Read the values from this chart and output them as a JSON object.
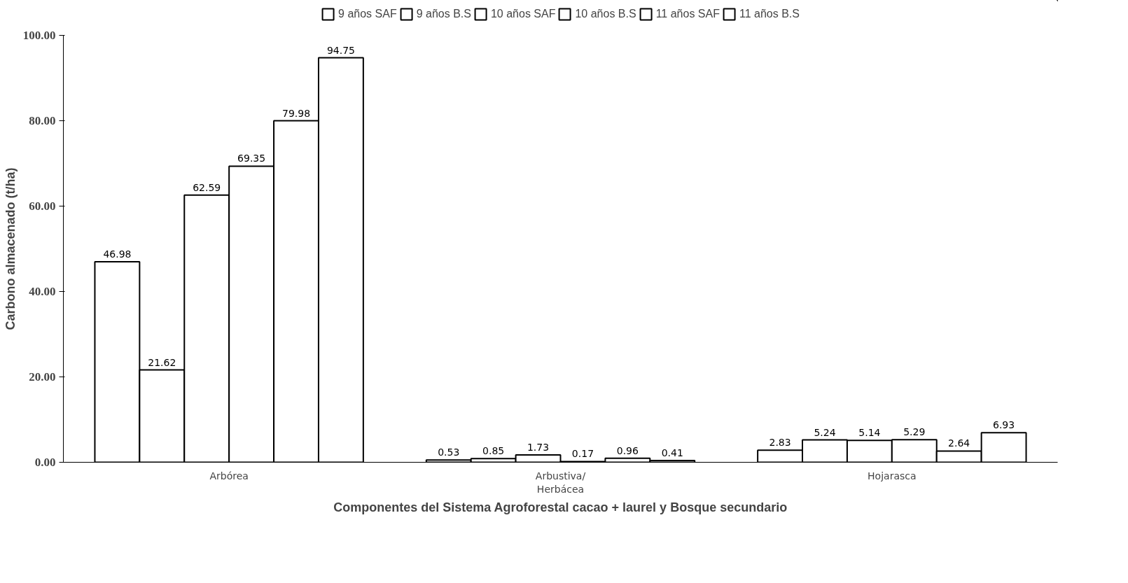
{
  "chart_data": {
    "type": "bar",
    "xlabel": "Componentes del Sistema Agroforestal cacao + laurel y Bosque secundario",
    "ylabel": "Carbono almacenado (t/ha)",
    "categories": [
      "Arbórea",
      "Arbustiva/\nHerbácea",
      "Hojarasca"
    ],
    "series": [
      {
        "name": "9 años SAF",
        "color": "#ffffff",
        "values": [
          46.98,
          0.53,
          2.83
        ]
      },
      {
        "name": "9 años B.S",
        "color": "#ffffff",
        "values": [
          21.62,
          0.85,
          5.24
        ]
      },
      {
        "name": "10 años SAF",
        "color": "#ffffff",
        "values": [
          62.59,
          1.73,
          5.14
        ]
      },
      {
        "name": "10 años B.S",
        "color": "#ffffff",
        "values": [
          69.35,
          0.17,
          5.29
        ]
      },
      {
        "name": "11 años SAF",
        "color": "#ffffff",
        "values": [
          79.98,
          0.96,
          2.64
        ]
      },
      {
        "name": "11 años B.S",
        "color": "#ffffff",
        "values": [
          94.75,
          0.41,
          6.93
        ]
      }
    ],
    "ylim": [
      0,
      100
    ],
    "yticks": [
      {
        "value": 0,
        "label": "0.00"
      },
      {
        "value": 20,
        "label": "20.00"
      },
      {
        "value": 40,
        "label": "40.00"
      },
      {
        "value": 60,
        "label": "60.00"
      },
      {
        "value": 80,
        "label": "80.00"
      },
      {
        "value": 100,
        "label": "100.00"
      }
    ],
    "data_labels": true,
    "grid": false,
    "legend": "top"
  }
}
